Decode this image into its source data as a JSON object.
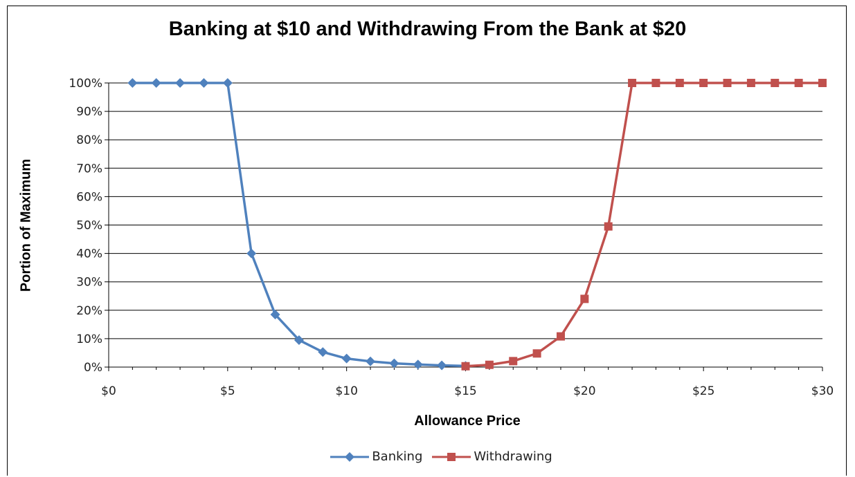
{
  "chart_data": {
    "type": "line",
    "title": "Banking at $10 and Withdrawing From the Bank at $20",
    "xlabel": "Allowance Price",
    "ylabel": "Portion of Maximum",
    "xlim": [
      0,
      30
    ],
    "ylim": [
      0,
      1
    ],
    "x_ticks": [
      "$0",
      "$5",
      "$10",
      "$15",
      "$20",
      "$25",
      "$30"
    ],
    "y_ticks": [
      "0%",
      "10%",
      "20%",
      "30%",
      "40%",
      "50%",
      "60%",
      "70%",
      "80%",
      "90%",
      "100%"
    ],
    "grid": "horizontal",
    "legend_position": "bottom",
    "series": [
      {
        "name": "Banking",
        "color": "#4f81bd",
        "marker": "diamond",
        "x": [
          1,
          2,
          3,
          4,
          5,
          6,
          7,
          8,
          9,
          10,
          11,
          12,
          13,
          14,
          15
        ],
        "y": [
          1.0,
          1.0,
          1.0,
          1.0,
          1.0,
          0.4,
          0.185,
          0.095,
          0.053,
          0.03,
          0.02,
          0.013,
          0.009,
          0.006,
          0.004
        ]
      },
      {
        "name": "Withdrawing",
        "color": "#c0504d",
        "marker": "square",
        "x": [
          15,
          16,
          17,
          18,
          19,
          20,
          21,
          22,
          23,
          24,
          25,
          26,
          27,
          28,
          29,
          30
        ],
        "y": [
          0.003,
          0.008,
          0.021,
          0.048,
          0.108,
          0.24,
          0.495,
          1.0,
          1.0,
          1.0,
          1.0,
          1.0,
          1.0,
          1.0,
          1.0,
          1.0
        ]
      }
    ]
  }
}
